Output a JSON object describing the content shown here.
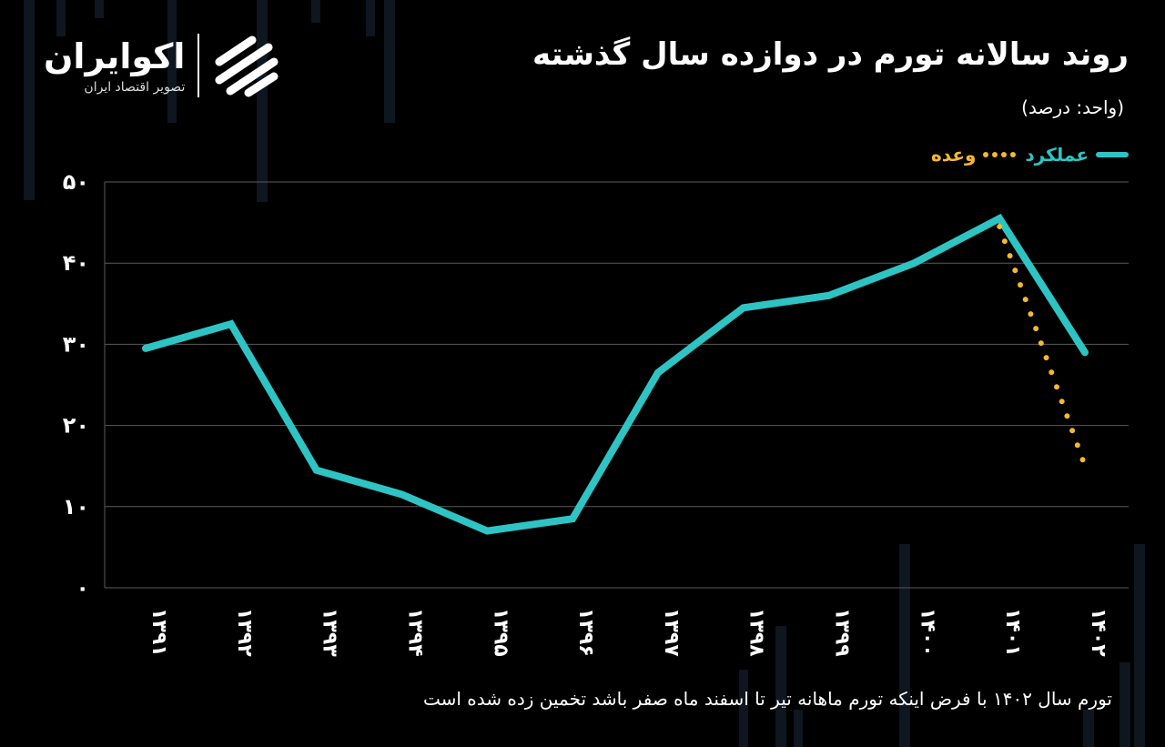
{
  "header": {
    "title": "روند سالانه تورم در دوازده سال گذشته",
    "unit": "(واحد: درصد)"
  },
  "logo": {
    "name": "اکوایران",
    "subtitle": "تصویر اقتصاد ایران"
  },
  "legend": {
    "actual": "عملکرد",
    "promise": "وعده"
  },
  "footnote": "تورم سال ۱۴۰۲ با فرض اینکه تورم ماهانه تیر تا اسفند ماه صفر باشد تخمین زده شده است",
  "colors": {
    "actual": "#2ec4c4",
    "promise": "#f5b82e",
    "grid": "#5a5a5a",
    "text": "#ffffff"
  },
  "chart_data": {
    "type": "line",
    "categories": [
      "۱۳۹۱",
      "۱۳۹۲",
      "۱۳۹۳",
      "۱۳۹۴",
      "۱۳۹۵",
      "۱۳۹۶",
      "۱۳۹۷",
      "۱۳۹۸",
      "۱۳۹۹",
      "۱۴۰۰",
      "۱۴۰۱",
      "۱۴۰۲"
    ],
    "series": [
      {
        "name": "عملکرد",
        "style": "solid",
        "values": [
          29.5,
          32.5,
          14.5,
          11.5,
          7.0,
          8.5,
          26.5,
          34.5,
          36.0,
          40.0,
          45.5,
          29.0
        ]
      },
      {
        "name": "وعده",
        "style": "dotted",
        "values": [
          null,
          null,
          null,
          null,
          null,
          null,
          null,
          null,
          null,
          null,
          44.5,
          15.0
        ]
      }
    ],
    "y_ticks": [
      "۰",
      "۱۰",
      "۲۰",
      "۳۰",
      "۴۰",
      "۵۰"
    ],
    "ylim": [
      0,
      50
    ],
    "grid": true,
    "legend_position": "top-right"
  }
}
